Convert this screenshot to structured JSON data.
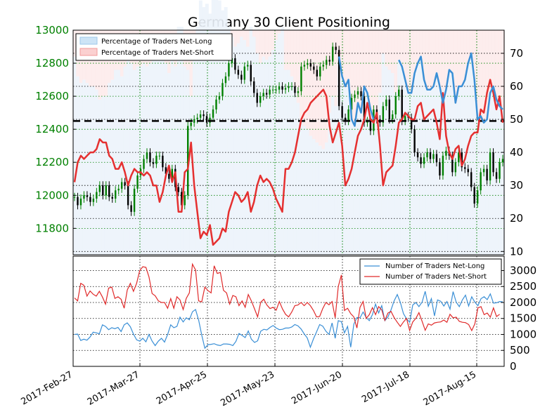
{
  "chart_data": [
    {
      "type": "candlestick",
      "title": "Germany 30 Client Positioning",
      "y_left": {
        "ticks": [
          11800,
          12000,
          12200,
          12400,
          12600,
          12800,
          13000
        ],
        "range": [
          11640,
          13000
        ],
        "color": "#008000"
      },
      "y_right": {
        "ticks": [
          10,
          20,
          30,
          40,
          50,
          60,
          70
        ],
        "range": [
          9,
          77
        ]
      },
      "x_ticks": [
        "2017-Feb-27",
        "2017-Mar-27",
        "2017-Apr-25",
        "2017-May-23",
        "2017-Jun-20",
        "2017-Jul-18",
        "2017-Aug-15"
      ],
      "current_price": 12450,
      "legend": [
        {
          "label": "Percentage of Traders Net-Long",
          "color": "#cde4f6",
          "edge": "#9ec8ea"
        },
        {
          "label": "Percentage of Traders Net-Short",
          "color": "#fbd0d0",
          "edge": "#f19a9a"
        }
      ],
      "grid": true,
      "price_close": [
        11990,
        11940,
        11980,
        12000,
        11990,
        11960,
        11980,
        12020,
        12060,
        12000,
        12060,
        11990,
        11980,
        12030,
        12040,
        12080,
        12060,
        11940,
        11900,
        12040,
        12120,
        12160,
        12220,
        12260,
        12200,
        12190,
        12240,
        12240,
        12170,
        12130,
        12100,
        12160,
        12050,
        12020,
        11940,
        12000,
        12420,
        12440,
        12460,
        12470,
        12490,
        12480,
        12440,
        12470,
        12520,
        12580,
        12600,
        12680,
        12720,
        12800,
        12830,
        12760,
        12730,
        12700,
        12780,
        12790,
        12690,
        12620,
        12560,
        12600,
        12620,
        12610,
        12640,
        12640,
        12640,
        12660,
        12640,
        12650,
        12660,
        12660,
        12620,
        12630,
        12780,
        12790,
        12800,
        12780,
        12760,
        12720,
        12780,
        12790,
        12820,
        12810,
        12900,
        12880,
        12540,
        12470,
        12450,
        12520,
        12590,
        12610,
        12630,
        12600,
        12440,
        12450,
        12390,
        12520,
        12460,
        12440,
        12540,
        12580,
        12460,
        12490,
        12600,
        12640,
        12450,
        12480,
        12470,
        12400,
        12260,
        12230,
        12190,
        12230,
        12260,
        12220,
        12250,
        12200,
        12120,
        12240,
        12270,
        12240,
        12140,
        12200,
        12260,
        12170,
        12160,
        12140,
        12050,
        11950,
        12030,
        12140,
        12160,
        12090,
        12260,
        12140,
        12100,
        12200,
        12220
      ],
      "pct_long": [
        null,
        null,
        null,
        null,
        null,
        null,
        null,
        null,
        null,
        null,
        null,
        null,
        null,
        null,
        null,
        null,
        null,
        null,
        null,
        null,
        null,
        null,
        null,
        null,
        null,
        null,
        null,
        null,
        null,
        null,
        null,
        null,
        null,
        null,
        null,
        null,
        null,
        null,
        null,
        null,
        null,
        null,
        null,
        null,
        null,
        null,
        null,
        null,
        null,
        null,
        null,
        null,
        null,
        null,
        null,
        null,
        null,
        null,
        null,
        null,
        null,
        null,
        null,
        null,
        null,
        null,
        null,
        null,
        null,
        null,
        null,
        null,
        null,
        null,
        null,
        null,
        null,
        null,
        null,
        null,
        null,
        null,
        null,
        null,
        69,
        63,
        60,
        62,
        50,
        48,
        55,
        52,
        60,
        58,
        53,
        50,
        null,
        null,
        null,
        null,
        null,
        null,
        null,
        68,
        66,
        62,
        58,
        58,
        64,
        67,
        69,
        62,
        59,
        59,
        60,
        64,
        60,
        55,
        59,
        65,
        64,
        55,
        60,
        60,
        62,
        67,
        70,
        62,
        50,
        51,
        49,
        50,
        58,
        60,
        56,
        54,
        53
      ],
      "pct_short": [
        31,
        37,
        39,
        38,
        39,
        40,
        40,
        41,
        44,
        43,
        43,
        39,
        38,
        35,
        35,
        37,
        34,
        30,
        33,
        35,
        34,
        34,
        33,
        34,
        33,
        30,
        30,
        25,
        28,
        33,
        36,
        31,
        34,
        22,
        22,
        34,
        35,
        43,
        30,
        22,
        14,
        16,
        15,
        18,
        12,
        13,
        14,
        17,
        16,
        22,
        25,
        28,
        27,
        25,
        26,
        28,
        22,
        25,
        30,
        33,
        31,
        32,
        31,
        29,
        26,
        24,
        22,
        35,
        35,
        37,
        40,
        45,
        50,
        52,
        53,
        55,
        56,
        57,
        58,
        59,
        57,
        48,
        43,
        46,
        49,
        42,
        30,
        32,
        35,
        40,
        45,
        47,
        50,
        55,
        50,
        49,
        52,
        42,
        30,
        34,
        35,
        36,
        42,
        49,
        50,
        52,
        51,
        50,
        50,
        54,
        55,
        50,
        51,
        52,
        53,
        49,
        44,
        58,
        45,
        40,
        38,
        41,
        42,
        36,
        38,
        42,
        45,
        46,
        46,
        53,
        52,
        58,
        62,
        58,
        53,
        57,
        49
      ]
    },
    {
      "type": "line",
      "legend": [
        "Number of Traders Net-Long",
        "Number of Traders Net-Short"
      ],
      "y_ticks": [
        0,
        500,
        1000,
        1500,
        2000,
        2500,
        3000
      ],
      "y_range": [
        0,
        3450
      ],
      "series": [
        {
          "name": "Number of Traders Net-Long",
          "color": "#3a8fd6",
          "values": [
            1000,
            1010,
            810,
            850,
            820,
            920,
            1070,
            1050,
            1020,
            1300,
            1250,
            1150,
            1210,
            1180,
            1220,
            1090,
            1300,
            1360,
            1240,
            1010,
            830,
            790,
            880,
            770,
            1000,
            790,
            650,
            790,
            880,
            760,
            1000,
            1300,
            1210,
            1250,
            1540,
            1390,
            1520,
            1460,
            1710,
            1780,
            1450,
            980,
            570,
            680,
            690,
            710,
            670,
            650,
            700,
            700,
            690,
            650,
            780,
            1030,
            970,
            900,
            1110,
            850,
            750,
            800,
            1100,
            1160,
            1140,
            1220,
            1280,
            1200,
            1150,
            1160,
            1200,
            1200,
            1230,
            1310,
            1270,
            1170,
            1020,
            890,
            600,
            860,
            1080,
            1310,
            1260,
            1100,
            1000,
            1360,
            880,
            1430,
            1400,
            1050,
            1250,
            600,
            1320,
            1530,
            1520,
            1700,
            1530,
            1430,
            1620,
            1950,
            1670,
            1900,
            1430,
            1550,
            1770,
            2050,
            2250,
            2000,
            1650,
            1490,
            1380,
            1920,
            2000,
            1870,
            2010,
            2350,
            1880,
            2120,
            1580,
            2080,
            2040,
            1890,
            2030,
            1790,
            2340,
            2010,
            1870,
            2080,
            2230,
            1890,
            2180,
            2010,
            1900,
            2120,
            2180,
            2090,
            2270,
            1980,
            1990,
            2030,
            2020
          ]
        },
        {
          "name": "Number of Traders Net-Short",
          "color": "#e02a2a",
          "values": [
            2140,
            2050,
            2600,
            2540,
            2200,
            2360,
            2260,
            2200,
            2350,
            2170,
            1950,
            2450,
            2480,
            2130,
            2180,
            2100,
            1820,
            2390,
            2600,
            2350,
            2600,
            3000,
            3120,
            3100,
            2800,
            2280,
            2210,
            2050,
            2000,
            2000,
            1820,
            2120,
            1820,
            2180,
            2080,
            1780,
            2130,
            2300,
            3200,
            3020,
            2050,
            2020,
            2480,
            2370,
            2300,
            3150,
            2910,
            2940,
            2380,
            2300,
            1950,
            2220,
            2180,
            1900,
            2050,
            1850,
            2250,
            2050,
            1800,
            1550,
            2010,
            2100,
            1920,
            1810,
            1850,
            1760,
            2030,
            1800,
            1630,
            1550,
            1700,
            1900,
            1920,
            2000,
            1900,
            2000,
            1900,
            1750,
            1550,
            1560,
            1810,
            2000,
            1930,
            2030,
            1520,
            2500,
            2860,
            1750,
            1820,
            1650,
            1550,
            1200,
            1850,
            2030,
            1500,
            1620,
            1840,
            1620,
            1870,
            1770,
            1440,
            1670,
            1720,
            1530,
            1380,
            1250,
            1390,
            1500,
            1120,
            1390,
            1500,
            1680,
            1410,
            1130,
            1330,
            1290,
            1360,
            1380,
            1390,
            1450,
            1380,
            1630,
            1520,
            1540,
            1410,
            1380,
            1370,
            1310,
            1120,
            1330,
            1830,
            1870,
            1620,
            1670,
            1540,
            1830,
            1560,
            1630
          ]
        }
      ]
    }
  ]
}
